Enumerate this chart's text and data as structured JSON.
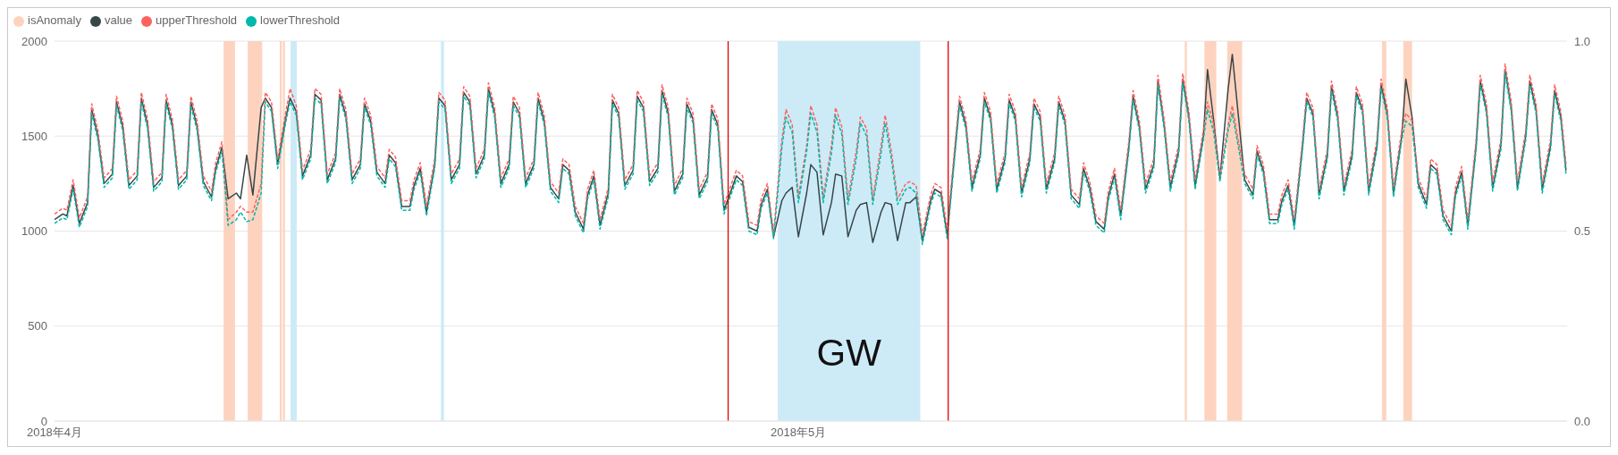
{
  "chart_data": {
    "type": "line",
    "x": [
      "2018-04-01T00:00",
      "2018-04-01T08:00",
      "2018-04-01T12:00",
      "2018-04-01T18:00",
      "2018-04-02T00:00",
      "2018-04-02T08:00",
      "2018-04-02T12:00",
      "2018-04-02T18:00",
      "2018-04-03T00:00",
      "2018-04-03T08:00",
      "2018-04-03T12:00",
      "2018-04-03T18:00",
      "2018-04-04T00:00",
      "2018-04-04T08:00",
      "2018-04-04T12:00",
      "2018-04-04T18:00",
      "2018-04-05T00:00",
      "2018-04-05T08:00",
      "2018-04-05T12:00",
      "2018-04-05T18:00",
      "2018-04-06T00:00",
      "2018-04-06T08:00",
      "2018-04-06T12:00",
      "2018-04-06T18:00",
      "2018-04-07T00:00",
      "2018-04-07T08:00",
      "2018-04-07T12:00",
      "2018-04-07T18:00",
      "2018-04-08T00:00",
      "2018-04-08T08:00",
      "2018-04-08T12:00",
      "2018-04-08T18:00",
      "2018-04-09T00:00",
      "2018-04-09T08:00",
      "2018-04-09T12:00",
      "2018-04-09T18:00",
      "2018-04-10T00:00",
      "2018-04-10T08:00",
      "2018-04-10T12:00",
      "2018-04-10T18:00",
      "2018-04-11T00:00",
      "2018-04-11T08:00",
      "2018-04-11T12:00",
      "2018-04-11T18:00",
      "2018-04-12T00:00",
      "2018-04-12T08:00",
      "2018-04-12T12:00",
      "2018-04-12T18:00",
      "2018-04-13T00:00",
      "2018-04-13T08:00",
      "2018-04-13T12:00",
      "2018-04-13T18:00",
      "2018-04-14T00:00",
      "2018-04-14T08:00",
      "2018-04-14T12:00",
      "2018-04-14T18:00",
      "2018-04-15T00:00",
      "2018-04-15T08:00",
      "2018-04-15T12:00",
      "2018-04-15T18:00",
      "2018-04-16T00:00",
      "2018-04-16T08:00",
      "2018-04-16T12:00",
      "2018-04-16T18:00",
      "2018-04-17T00:00",
      "2018-04-17T08:00",
      "2018-04-17T12:00",
      "2018-04-17T18:00",
      "2018-04-18T00:00",
      "2018-04-18T08:00",
      "2018-04-18T12:00",
      "2018-04-18T18:00",
      "2018-04-19T00:00",
      "2018-04-19T08:00",
      "2018-04-19T12:00",
      "2018-04-19T18:00",
      "2018-04-20T00:00",
      "2018-04-20T08:00",
      "2018-04-20T12:00",
      "2018-04-20T18:00",
      "2018-04-21T00:00",
      "2018-04-21T08:00",
      "2018-04-21T12:00",
      "2018-04-21T18:00",
      "2018-04-22T00:00",
      "2018-04-22T08:00",
      "2018-04-22T12:00",
      "2018-04-22T18:00",
      "2018-04-23T00:00",
      "2018-04-23T08:00",
      "2018-04-23T12:00",
      "2018-04-23T18:00",
      "2018-04-24T00:00",
      "2018-04-24T08:00",
      "2018-04-24T12:00",
      "2018-04-24T18:00",
      "2018-04-25T00:00",
      "2018-04-25T08:00",
      "2018-04-25T12:00",
      "2018-04-25T18:00",
      "2018-04-26T00:00",
      "2018-04-26T08:00",
      "2018-04-26T12:00",
      "2018-04-26T18:00",
      "2018-04-27T00:00",
      "2018-04-27T08:00",
      "2018-04-27T12:00",
      "2018-04-27T18:00",
      "2018-04-28T00:00",
      "2018-04-28T08:00",
      "2018-04-28T12:00",
      "2018-04-28T18:00",
      "2018-04-29T00:00",
      "2018-04-29T08:00",
      "2018-04-29T12:00",
      "2018-04-29T18:00",
      "2018-04-30T00:00",
      "2018-04-30T08:00",
      "2018-04-30T12:00",
      "2018-04-30T18:00",
      "2018-05-01T00:00",
      "2018-05-01T08:00",
      "2018-05-01T12:00",
      "2018-05-01T18:00",
      "2018-05-02T00:00",
      "2018-05-02T08:00",
      "2018-05-02T12:00",
      "2018-05-02T18:00",
      "2018-05-03T00:00",
      "2018-05-03T08:00",
      "2018-05-03T12:00",
      "2018-05-03T18:00",
      "2018-05-04T00:00",
      "2018-05-04T08:00",
      "2018-05-04T12:00",
      "2018-05-04T18:00",
      "2018-05-05T00:00",
      "2018-05-05T08:00",
      "2018-05-05T12:00",
      "2018-05-05T18:00",
      "2018-05-06T00:00",
      "2018-05-06T08:00",
      "2018-05-06T12:00",
      "2018-05-06T18:00",
      "2018-05-07T00:00",
      "2018-05-07T08:00",
      "2018-05-07T12:00",
      "2018-05-07T18:00",
      "2018-05-08T00:00",
      "2018-05-08T08:00",
      "2018-05-08T12:00",
      "2018-05-08T18:00",
      "2018-05-09T00:00",
      "2018-05-09T08:00",
      "2018-05-09T12:00",
      "2018-05-09T18:00",
      "2018-05-10T00:00",
      "2018-05-10T08:00",
      "2018-05-10T12:00",
      "2018-05-10T18:00",
      "2018-05-11T00:00",
      "2018-05-11T08:00",
      "2018-05-11T12:00",
      "2018-05-11T18:00",
      "2018-05-12T00:00",
      "2018-05-12T08:00",
      "2018-05-12T12:00",
      "2018-05-12T18:00",
      "2018-05-13T00:00",
      "2018-05-13T08:00",
      "2018-05-13T12:00",
      "2018-05-13T18:00",
      "2018-05-14T00:00",
      "2018-05-14T08:00",
      "2018-05-14T12:00",
      "2018-05-14T18:00",
      "2018-05-15T00:00",
      "2018-05-15T08:00",
      "2018-05-15T12:00",
      "2018-05-15T18:00",
      "2018-05-16T00:00",
      "2018-05-16T08:00",
      "2018-05-16T12:00",
      "2018-05-16T18:00",
      "2018-05-17T00:00",
      "2018-05-17T08:00",
      "2018-05-17T12:00",
      "2018-05-17T18:00",
      "2018-05-18T00:00",
      "2018-05-18T08:00",
      "2018-05-18T12:00",
      "2018-05-18T18:00",
      "2018-05-19T00:00",
      "2018-05-19T08:00",
      "2018-05-19T12:00",
      "2018-05-19T18:00",
      "2018-05-20T00:00",
      "2018-05-20T08:00",
      "2018-05-20T12:00",
      "2018-05-20T18:00",
      "2018-05-21T00:00",
      "2018-05-21T08:00",
      "2018-05-21T12:00",
      "2018-05-21T18:00",
      "2018-05-22T00:00",
      "2018-05-22T08:00",
      "2018-05-22T12:00",
      "2018-05-22T18:00",
      "2018-05-23T00:00",
      "2018-05-23T08:00",
      "2018-05-23T12:00",
      "2018-05-23T18:00",
      "2018-05-24T00:00",
      "2018-05-24T08:00",
      "2018-05-24T12:00",
      "2018-05-24T18:00",
      "2018-05-25T00:00",
      "2018-05-25T08:00",
      "2018-05-25T12:00",
      "2018-05-25T18:00",
      "2018-05-26T00:00",
      "2018-05-26T08:00",
      "2018-05-26T12:00",
      "2018-05-26T18:00",
      "2018-05-27T00:00",
      "2018-05-27T08:00",
      "2018-05-27T12:00",
      "2018-05-27T18:00",
      "2018-05-28T00:00",
      "2018-05-28T08:00",
      "2018-05-28T12:00",
      "2018-05-28T18:00",
      "2018-05-29T00:00",
      "2018-05-29T08:00",
      "2018-05-29T12:00",
      "2018-05-29T18:00",
      "2018-05-30T00:00",
      "2018-05-30T08:00",
      "2018-05-30T12:00",
      "2018-05-30T18:00",
      "2018-05-31T00:00",
      "2018-05-31T08:00",
      "2018-05-31T12:00",
      "2018-05-31T18:00",
      "2018-05-31T23:00"
    ],
    "series": [
      {
        "name": "isAnomaly",
        "type": "area",
        "axis": "y2",
        "color": "#fdd3bf",
        "x": [
          "2018-04-07T19:40",
          "2018-04-07T19:40",
          "2018-04-08T06:40",
          "2018-04-08T06:40",
          "2018-04-08T19:00",
          "2018-04-08T19:00",
          "2018-04-09T09:00",
          "2018-04-09T09:00",
          "2018-04-10T02:00",
          "2018-04-10T02:00",
          "2018-04-10T04:00",
          "2018-04-10T04:00",
          "2018-04-10T05:00",
          "2018-04-10T05:00",
          "2018-04-10T07:00",
          "2018-04-10T07:00",
          "2018-05-16T14:00",
          "2018-05-16T14:00",
          "2018-05-16T16:00",
          "2018-05-16T16:00",
          "2018-05-17T09:00",
          "2018-05-17T09:00",
          "2018-05-17T20:30",
          "2018-05-17T20:30",
          "2018-05-18T07:00",
          "2018-05-18T07:00",
          "2018-05-18T21:30",
          "2018-05-18T21:30",
          "2018-05-24T13:00",
          "2018-05-24T13:00",
          "2018-05-24T17:00",
          "2018-05-24T17:00",
          "2018-05-25T09:30",
          "2018-05-25T09:30",
          "2018-05-25T18:00",
          "2018-05-25T18:00"
        ],
        "values": [
          0,
          1,
          1,
          0,
          0,
          1,
          1,
          0,
          0,
          1,
          1,
          0,
          0,
          1,
          1,
          0,
          0,
          1,
          1,
          0,
          0,
          1,
          1,
          0,
          0,
          1,
          1,
          0,
          0,
          1,
          1,
          0,
          0,
          1,
          1,
          0
        ]
      },
      {
        "name": "value",
        "color": "#374649",
        "line_style": "solid",
        "values": [
          1060,
          1090,
          1080,
          1240,
          1040,
          1150,
          1640,
          1500,
          1250,
          1300,
          1680,
          1550,
          1240,
          1290,
          1700,
          1560,
          1230,
          1280,
          1690,
          1560,
          1240,
          1290,
          1680,
          1550,
          1260,
          1180,
          1330,
          1440,
          1170,
          1200,
          1170,
          1400,
          1190,
          1650,
          1700,
          1650,
          1350,
          1600,
          1700,
          1630,
          1290,
          1400,
          1720,
          1690,
          1270,
          1380,
          1720,
          1610,
          1270,
          1350,
          1670,
          1580,
          1310,
          1250,
          1400,
          1360,
          1130,
          1130,
          1240,
          1330,
          1100,
          1350,
          1700,
          1660,
          1270,
          1350,
          1730,
          1680,
          1300,
          1400,
          1750,
          1620,
          1250,
          1350,
          1680,
          1620,
          1250,
          1350,
          1700,
          1580,
          1230,
          1170,
          1350,
          1320,
          1100,
          1010,
          1190,
          1290,
          1030,
          1200,
          1690,
          1620,
          1240,
          1320,
          1710,
          1650,
          1260,
          1330,
          1740,
          1620,
          1210,
          1300,
          1670,
          1590,
          1190,
          1280,
          1640,
          1560,
          1110,
          1230,
          1290,
          1260,
          1020,
          1000,
          1140,
          1220,
          970,
          1160,
          1200,
          1230,
          970,
          1200,
          1350,
          1310,
          980,
          1150,
          1300,
          1290,
          970,
          1110,
          1140,
          1150,
          940,
          1100,
          1150,
          1140,
          950,
          1150,
          1150,
          1180,
          950,
          1160,
          1220,
          1200,
          980,
          1450,
          1680,
          1560,
          1230,
          1400,
          1700,
          1600,
          1220,
          1380,
          1690,
          1600,
          1200,
          1380,
          1670,
          1600,
          1220,
          1380,
          1680,
          1580,
          1190,
          1140,
          1330,
          1230,
          1050,
          1010,
          1180,
          1300,
          1080,
          1450,
          1710,
          1550,
          1220,
          1350,
          1790,
          1560,
          1230,
          1420,
          1800,
          1600,
          1240,
          1500,
          1850,
          1580,
          1280,
          1750,
          1930,
          1600,
          1270,
          1190,
          1420,
          1320,
          1060,
          1060,
          1160,
          1240,
          1030,
          1450,
          1700,
          1620,
          1190,
          1400,
          1760,
          1600,
          1210,
          1400,
          1730,
          1640,
          1210,
          1450,
          1770,
          1620,
          1200,
          1500,
          1800,
          1600,
          1250,
          1140,
          1350,
          1320,
          1080,
          1000,
          1200,
          1310,
          1030,
          1450,
          1790,
          1640,
          1230,
          1450,
          1850,
          1650,
          1230,
          1500,
          1790,
          1640,
          1220,
          1450,
          1740,
          1600,
          1320
        ]
      },
      {
        "name": "upperThreshold",
        "color": "#fd625e",
        "line_style": "dashed",
        "values": [
          1090,
          1120,
          1110,
          1270,
          1070,
          1180,
          1670,
          1530,
          1280,
          1330,
          1710,
          1580,
          1270,
          1320,
          1730,
          1590,
          1260,
          1310,
          1720,
          1590,
          1270,
          1320,
          1710,
          1580,
          1290,
          1210,
          1360,
          1470,
          1060,
          1100,
          1130,
          1100,
          1100,
          1250,
          1730,
          1680,
          1380,
          1630,
          1750,
          1660,
          1320,
          1430,
          1750,
          1720,
          1300,
          1410,
          1750,
          1640,
          1300,
          1380,
          1700,
          1610,
          1340,
          1280,
          1430,
          1390,
          1160,
          1160,
          1270,
          1360,
          1130,
          1380,
          1730,
          1690,
          1300,
          1380,
          1760,
          1710,
          1330,
          1430,
          1780,
          1650,
          1280,
          1380,
          1710,
          1650,
          1280,
          1380,
          1730,
          1610,
          1260,
          1200,
          1380,
          1350,
          1130,
          1040,
          1220,
          1320,
          1060,
          1230,
          1720,
          1650,
          1270,
          1350,
          1740,
          1680,
          1290,
          1360,
          1770,
          1650,
          1240,
          1330,
          1700,
          1620,
          1220,
          1310,
          1670,
          1590,
          1140,
          1260,
          1320,
          1290,
          1050,
          1030,
          1170,
          1250,
          990,
          1480,
          1640,
          1560,
          1180,
          1450,
          1660,
          1560,
          1180,
          1450,
          1650,
          1550,
          1170,
          1420,
          1600,
          1540,
          1170,
          1450,
          1610,
          1420,
          1170,
          1250,
          1260,
          1240,
          980,
          1190,
          1250,
          1230,
          1010,
          1480,
          1710,
          1590,
          1260,
          1430,
          1730,
          1630,
          1250,
          1410,
          1720,
          1630,
          1230,
          1410,
          1700,
          1630,
          1250,
          1410,
          1710,
          1610,
          1220,
          1170,
          1360,
          1260,
          1080,
          1040,
          1210,
          1330,
          1110,
          1480,
          1740,
          1580,
          1250,
          1380,
          1820,
          1590,
          1260,
          1450,
          1830,
          1630,
          1270,
          1530,
          1680,
          1560,
          1290,
          1560,
          1660,
          1470,
          1300,
          1220,
          1450,
          1350,
          1090,
          1090,
          1190,
          1270,
          1060,
          1480,
          1730,
          1650,
          1220,
          1430,
          1790,
          1630,
          1240,
          1430,
          1760,
          1670,
          1240,
          1480,
          1800,
          1650,
          1230,
          1530,
          1620,
          1580,
          1280,
          1170,
          1380,
          1350,
          1110,
          1030,
          1230,
          1340,
          1060,
          1480,
          1820,
          1670,
          1260,
          1480,
          1880,
          1680,
          1260,
          1530,
          1820,
          1670,
          1250,
          1480,
          1770,
          1630,
          1350
        ]
      },
      {
        "name": "lowerThreshold",
        "color": "#01b8aa",
        "line_style": "dashed",
        "values": [
          1040,
          1070,
          1060,
          1220,
          1020,
          1130,
          1620,
          1480,
          1230,
          1280,
          1660,
          1530,
          1220,
          1270,
          1680,
          1540,
          1210,
          1260,
          1670,
          1540,
          1220,
          1270,
          1660,
          1530,
          1240,
          1160,
          1310,
          1420,
          1030,
          1060,
          1100,
          1050,
          1060,
          1200,
          1680,
          1630,
          1330,
          1580,
          1680,
          1610,
          1270,
          1380,
          1700,
          1670,
          1250,
          1360,
          1700,
          1590,
          1250,
          1330,
          1650,
          1560,
          1290,
          1230,
          1380,
          1340,
          1110,
          1110,
          1220,
          1310,
          1080,
          1330,
          1680,
          1640,
          1250,
          1330,
          1710,
          1660,
          1280,
          1380,
          1730,
          1600,
          1230,
          1330,
          1660,
          1600,
          1230,
          1330,
          1680,
          1560,
          1210,
          1150,
          1330,
          1300,
          1080,
          990,
          1170,
          1270,
          1010,
          1180,
          1670,
          1600,
          1220,
          1300,
          1690,
          1630,
          1240,
          1310,
          1720,
          1600,
          1190,
          1280,
          1650,
          1570,
          1170,
          1260,
          1620,
          1540,
          1090,
          1210,
          1270,
          1240,
          1000,
          980,
          1120,
          1200,
          960,
          1440,
          1600,
          1520,
          1150,
          1420,
          1620,
          1520,
          1150,
          1410,
          1610,
          1510,
          1140,
          1380,
          1570,
          1500,
          1140,
          1410,
          1570,
          1380,
          1140,
          1220,
          1230,
          1200,
          930,
          1140,
          1200,
          1180,
          960,
          1430,
          1660,
          1540,
          1210,
          1380,
          1680,
          1580,
          1200,
          1360,
          1670,
          1580,
          1180,
          1360,
          1650,
          1580,
          1200,
          1360,
          1660,
          1560,
          1170,
          1120,
          1310,
          1210,
          1030,
          990,
          1160,
          1280,
          1060,
          1430,
          1690,
          1530,
          1200,
          1330,
          1770,
          1540,
          1210,
          1400,
          1780,
          1580,
          1220,
          1480,
          1640,
          1520,
          1260,
          1530,
          1620,
          1440,
          1250,
          1170,
          1400,
          1300,
          1040,
          1040,
          1140,
          1220,
          1010,
          1430,
          1680,
          1600,
          1170,
          1380,
          1740,
          1580,
          1190,
          1380,
          1710,
          1620,
          1190,
          1430,
          1750,
          1600,
          1180,
          1480,
          1580,
          1550,
          1230,
          1120,
          1330,
          1300,
          1060,
          980,
          1180,
          1290,
          1010,
          1430,
          1770,
          1620,
          1210,
          1430,
          1830,
          1630,
          1210,
          1480,
          1770,
          1620,
          1200,
          1430,
          1720,
          1580,
          1300
        ]
      }
    ],
    "xlim": [
      "2018-04-01",
      "2018-06-01"
    ],
    "xticks": [
      {
        "value": "2018-04-01",
        "label": "2018年4月"
      },
      {
        "value": "2018-05-01",
        "label": "2018年5月"
      }
    ],
    "ylim": [
      0,
      2000
    ],
    "yticks": [
      0,
      500,
      1000,
      1500,
      2000
    ],
    "y2lim": [
      0,
      1
    ],
    "y2ticks": [
      {
        "value": 0,
        "label": "0.0"
      },
      {
        "value": 0.5,
        "label": "0.5"
      },
      {
        "value": 1,
        "label": "1.0"
      }
    ],
    "bands": [
      {
        "axis": "x",
        "from": "2018-04-10T12:30",
        "to": "2018-04-10T18:30",
        "color": "#cdebf7"
      },
      {
        "axis": "x",
        "from": "2018-04-16T14:00",
        "to": "2018-04-16T17:00",
        "color": "#cdebf7"
      },
      {
        "axis": "x",
        "from": "2018-04-30T04:00",
        "to": "2018-05-05T22:00",
        "label": "GW",
        "color": "#cdebf7"
      }
    ],
    "ref_lines": [
      {
        "axis": "x",
        "value": "2018-04-28T04:00",
        "color": "#e00000",
        "line_style": "solid"
      },
      {
        "axis": "x",
        "value": "2018-05-07T01:00",
        "color": "#e00000",
        "line_style": "solid"
      }
    ],
    "grid": "y",
    "legend": "top left"
  }
}
